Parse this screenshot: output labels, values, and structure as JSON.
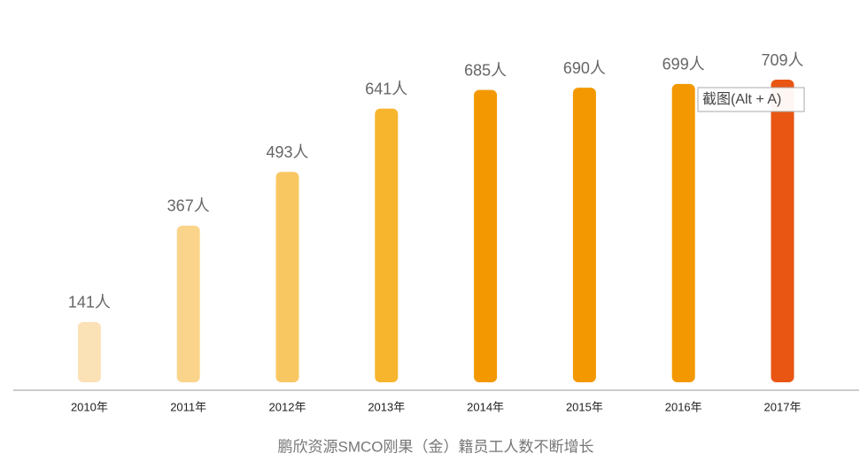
{
  "chart_data": {
    "type": "bar",
    "title": "鹏欣资源SMCO刚果（金）籍员工人数不断增长",
    "categories": [
      "2010年",
      "2011年",
      "2012年",
      "2013年",
      "2014年",
      "2015年",
      "2016年",
      "2017年"
    ],
    "values": [
      141,
      367,
      493,
      641,
      685,
      690,
      699,
      709
    ],
    "value_labels": [
      "141人",
      "367人",
      "493人",
      "641人",
      "685人",
      "690人",
      "699人",
      "709人"
    ],
    "colors": [
      "#fbe1b6",
      "#fbd48c",
      "#f9c762",
      "#f7b52d",
      "#f39800",
      "#f39800",
      "#f39800",
      "#e95513"
    ],
    "tooltip": "截图(Alt + A)"
  }
}
